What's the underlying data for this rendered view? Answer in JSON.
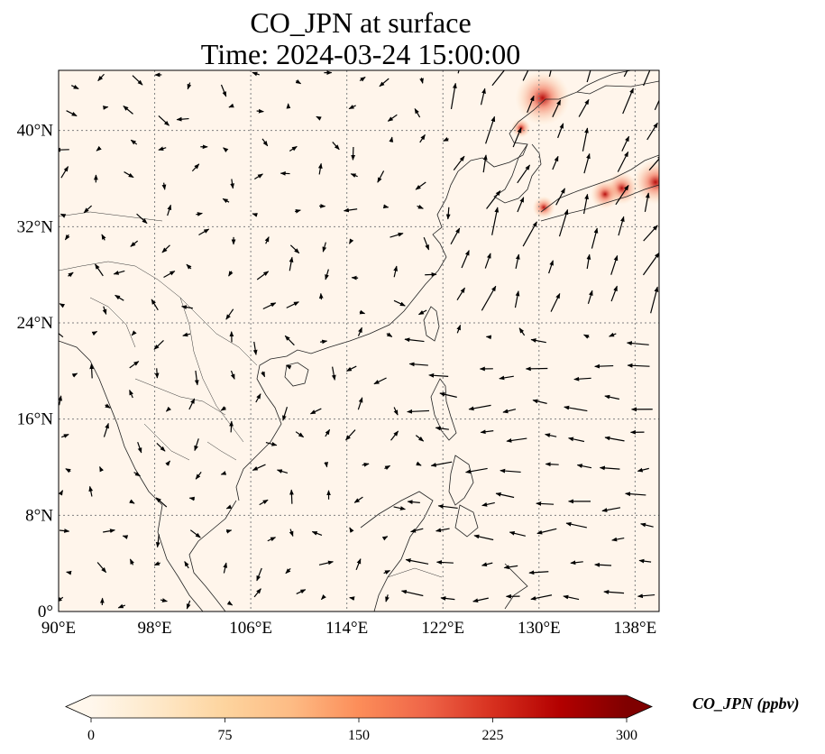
{
  "title": {
    "line1": "CO_JPN at surface",
    "line2": "Time: 2024-03-24 15:00:00"
  },
  "map": {
    "lon_range": [
      90,
      140
    ],
    "lat_range": [
      0,
      45
    ],
    "x_ticks": [
      {
        "value": 90,
        "label": "90°E"
      },
      {
        "value": 98,
        "label": "98°E"
      },
      {
        "value": 106,
        "label": "106°E"
      },
      {
        "value": 114,
        "label": "114°E"
      },
      {
        "value": 122,
        "label": "122°E"
      },
      {
        "value": 130,
        "label": "130°E"
      },
      {
        "value": 138,
        "label": "138°E"
      }
    ],
    "y_ticks": [
      {
        "value": 0,
        "label": "0°"
      },
      {
        "value": 8,
        "label": "8°N"
      },
      {
        "value": 16,
        "label": "16°N"
      },
      {
        "value": 24,
        "label": "24°N"
      },
      {
        "value": 32,
        "label": "32°N"
      },
      {
        "value": 40,
        "label": "40°N"
      }
    ],
    "background_color": "#fff5eb",
    "hotspots": [
      {
        "lon": 130.3,
        "lat": 42.7,
        "value": 260
      },
      {
        "lon": 139.7,
        "lat": 35.7,
        "value": 200
      },
      {
        "lon": 136.9,
        "lat": 35.2,
        "value": 130
      },
      {
        "lon": 135.5,
        "lat": 34.7,
        "value": 110
      },
      {
        "lon": 130.4,
        "lat": 33.6,
        "value": 70
      },
      {
        "lon": 128.5,
        "lat": 40.2,
        "value": 50
      }
    ]
  },
  "colorbar": {
    "label": "CO_JPN (ppbv)",
    "colormap": "OrRd",
    "min": 0,
    "max": 300,
    "ticks": [
      {
        "value": 0,
        "label": "0"
      },
      {
        "value": 75,
        "label": "75"
      },
      {
        "value": 150,
        "label": "150"
      },
      {
        "value": 225,
        "label": "225"
      },
      {
        "value": 300,
        "label": "300"
      }
    ],
    "extend": "both",
    "stops": [
      "#fff7ec",
      "#fee8c8",
      "#fdd49e",
      "#fdbb84",
      "#fc8d59",
      "#ef6548",
      "#d7301f",
      "#b30000",
      "#7f0000"
    ]
  }
}
